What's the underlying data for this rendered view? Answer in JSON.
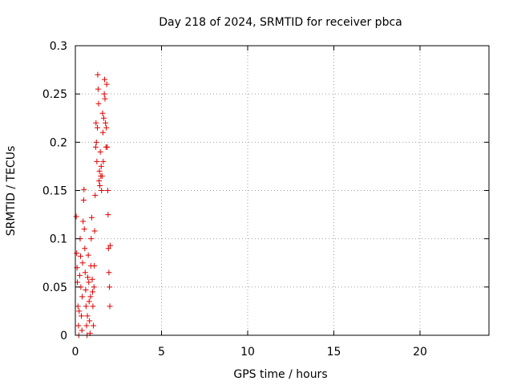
{
  "chart_data": {
    "type": "scatter",
    "title": "Day 218 of 2024, SRMTID for receiver pbca",
    "xlabel": "GPS time / hours",
    "ylabel": "SRMTID / TECUs",
    "xlim": [
      0,
      24
    ],
    "ylim": [
      0,
      0.3
    ],
    "x_ticks": [
      0,
      5,
      10,
      15,
      20
    ],
    "x_tick_labels": [
      "0",
      "5",
      "10",
      "15",
      "20"
    ],
    "y_ticks": [
      0,
      0.05,
      0.1,
      0.15,
      0.2,
      0.25,
      0.3
    ],
    "y_tick_labels": [
      "0",
      "0.05",
      "0.1",
      "0.15",
      "0.2",
      "0.25",
      "0.3"
    ],
    "grid": true,
    "legend": "none",
    "marker": "plus",
    "color": "#e00000",
    "points": [
      {
        "x": 0.05,
        "y": 0.123
      },
      {
        "x": 0.08,
        "y": 0.085
      },
      {
        "x": 0.1,
        "y": 0.07
      },
      {
        "x": 0.12,
        "y": 0.055
      },
      {
        "x": 0.15,
        "y": 0.03
      },
      {
        "x": 0.18,
        "y": 0.01
      },
      {
        "x": 0.2,
        "y": 0.0
      },
      {
        "x": 0.22,
        "y": 0.025
      },
      {
        "x": 0.25,
        "y": 0.062
      },
      {
        "x": 0.28,
        "y": 0.1
      },
      {
        "x": 0.3,
        "y": 0.082
      },
      {
        "x": 0.32,
        "y": 0.05
      },
      {
        "x": 0.35,
        "y": 0.02
      },
      {
        "x": 0.38,
        "y": 0.005
      },
      {
        "x": 0.4,
        "y": 0.04
      },
      {
        "x": 0.42,
        "y": 0.075
      },
      {
        "x": 0.45,
        "y": 0.118
      },
      {
        "x": 0.48,
        "y": 0.14
      },
      {
        "x": 0.5,
        "y": 0.151
      },
      {
        "x": 0.52,
        "y": 0.11
      },
      {
        "x": 0.55,
        "y": 0.09
      },
      {
        "x": 0.57,
        "y": 0.065
      },
      {
        "x": 0.6,
        "y": 0.047
      },
      {
        "x": 0.62,
        "y": 0.03
      },
      {
        "x": 0.65,
        "y": 0.01
      },
      {
        "x": 0.68,
        "y": 0.0
      },
      {
        "x": 0.7,
        "y": 0.02
      },
      {
        "x": 0.72,
        "y": 0.06
      },
      {
        "x": 0.75,
        "y": 0.083
      },
      {
        "x": 0.78,
        "y": 0.055
      },
      {
        "x": 0.8,
        "y": 0.035
      },
      {
        "x": 0.82,
        "y": 0.015
      },
      {
        "x": 0.85,
        "y": 0.002
      },
      {
        "x": 0.88,
        "y": 0.04
      },
      {
        "x": 0.9,
        "y": 0.072
      },
      {
        "x": 0.92,
        "y": 0.1
      },
      {
        "x": 0.95,
        "y": 0.122
      },
      {
        "x": 0.98,
        "y": 0.058
      },
      {
        "x": 1.0,
        "y": 0.045
      },
      {
        "x": 1.02,
        "y": 0.03
      },
      {
        "x": 1.05,
        "y": 0.01
      },
      {
        "x": 1.08,
        "y": 0.05
      },
      {
        "x": 1.1,
        "y": 0.072
      },
      {
        "x": 1.12,
        "y": 0.108
      },
      {
        "x": 1.15,
        "y": 0.145
      },
      {
        "x": 1.18,
        "y": 0.195
      },
      {
        "x": 1.2,
        "y": 0.22
      },
      {
        "x": 1.22,
        "y": 0.2
      },
      {
        "x": 1.25,
        "y": 0.18
      },
      {
        "x": 1.28,
        "y": 0.215
      },
      {
        "x": 1.3,
        "y": 0.27
      },
      {
        "x": 1.32,
        "y": 0.255
      },
      {
        "x": 1.35,
        "y": 0.24
      },
      {
        "x": 1.38,
        "y": 0.16
      },
      {
        "x": 1.4,
        "y": 0.17
      },
      {
        "x": 1.42,
        "y": 0.155
      },
      {
        "x": 1.45,
        "y": 0.19
      },
      {
        "x": 1.48,
        "y": 0.165
      },
      {
        "x": 1.5,
        "y": 0.175
      },
      {
        "x": 1.52,
        "y": 0.15
      },
      {
        "x": 1.55,
        "y": 0.165
      },
      {
        "x": 1.58,
        "y": 0.23
      },
      {
        "x": 1.6,
        "y": 0.21
      },
      {
        "x": 1.62,
        "y": 0.18
      },
      {
        "x": 1.65,
        "y": 0.225
      },
      {
        "x": 1.68,
        "y": 0.25
      },
      {
        "x": 1.7,
        "y": 0.265
      },
      {
        "x": 1.72,
        "y": 0.245
      },
      {
        "x": 1.75,
        "y": 0.22
      },
      {
        "x": 1.78,
        "y": 0.195
      },
      {
        "x": 1.8,
        "y": 0.215
      },
      {
        "x": 1.82,
        "y": 0.26
      },
      {
        "x": 1.85,
        "y": 0.195
      },
      {
        "x": 1.88,
        "y": 0.15
      },
      {
        "x": 1.9,
        "y": 0.125
      },
      {
        "x": 1.92,
        "y": 0.09
      },
      {
        "x": 1.95,
        "y": 0.065
      },
      {
        "x": 1.98,
        "y": 0.05
      },
      {
        "x": 2.0,
        "y": 0.03
      },
      {
        "x": 2.02,
        "y": 0.093
      }
    ]
  }
}
